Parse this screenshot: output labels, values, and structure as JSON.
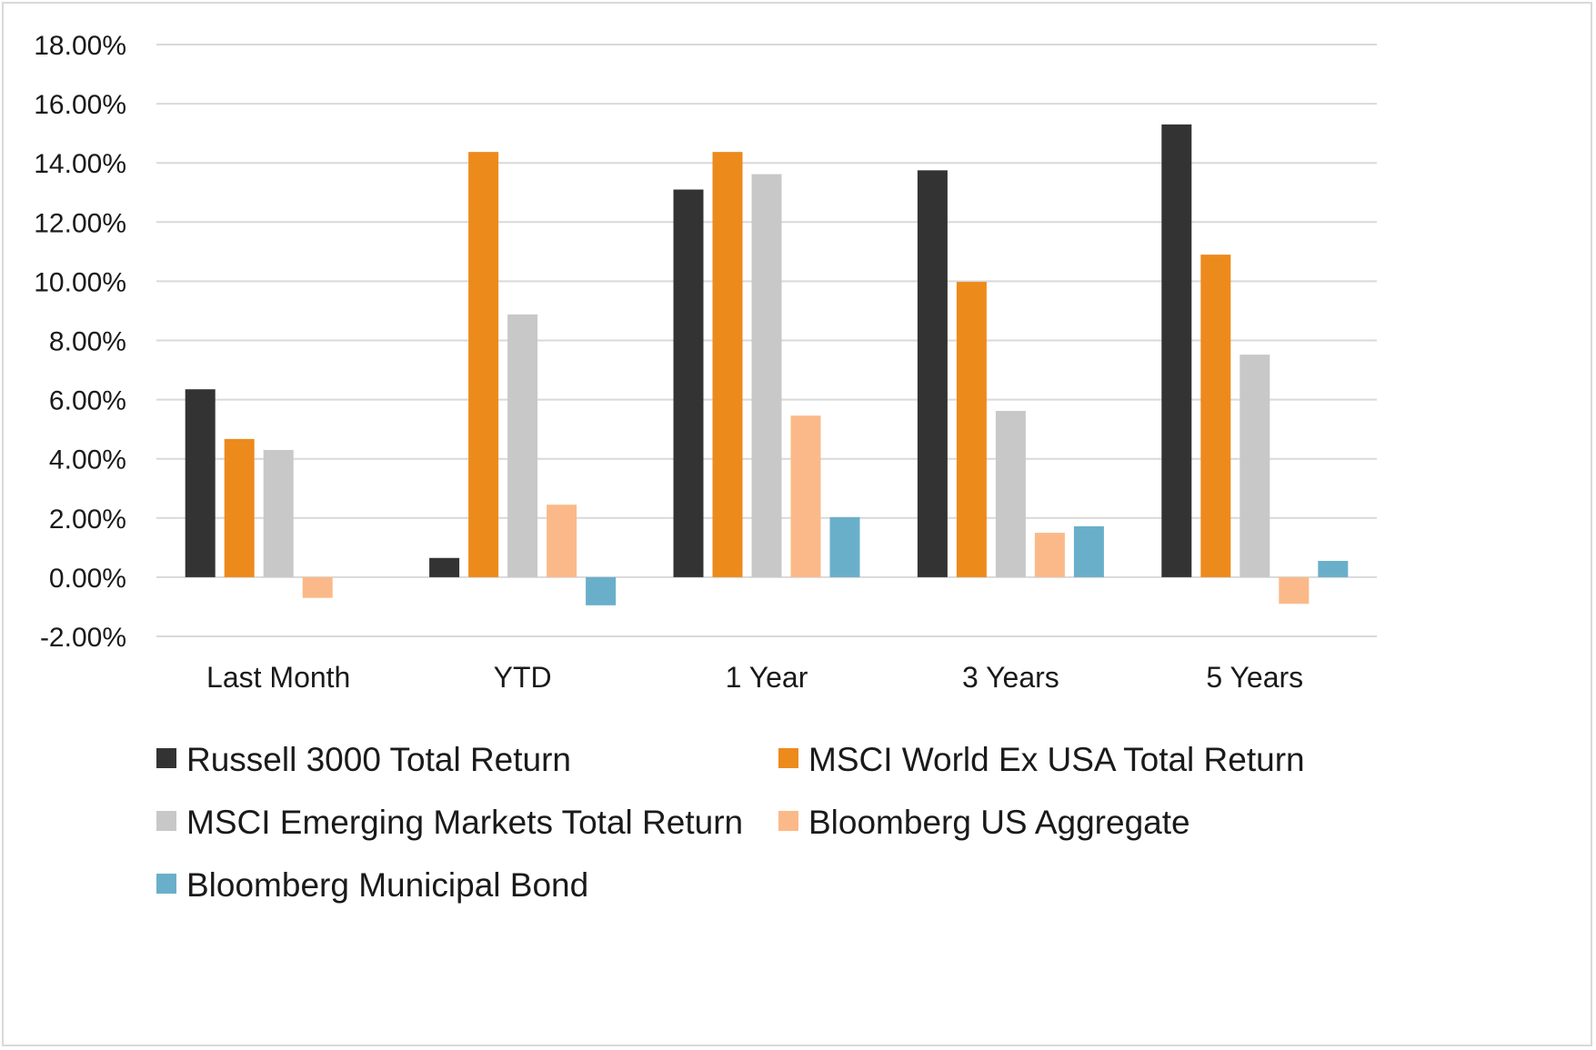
{
  "chart_data": {
    "type": "bar",
    "title": "",
    "xlabel": "",
    "ylabel": "",
    "categories": [
      "Last Month",
      "YTD",
      "1 Year",
      "3 Years",
      "5 Years"
    ],
    "ylim": [
      -0.02,
      0.18
    ],
    "yticks": [
      -0.02,
      0.0,
      0.02,
      0.04,
      0.06,
      0.08,
      0.1,
      0.12,
      0.14,
      0.16,
      0.18
    ],
    "ytick_labels": [
      "-2.00%",
      "0.00%",
      "2.00%",
      "4.00%",
      "6.00%",
      "8.00%",
      "10.00%",
      "12.00%",
      "14.00%",
      "16.00%",
      "18.00%"
    ],
    "grid": true,
    "legend_position": "bottom",
    "series": [
      {
        "name": "Russell 3000 Total Return",
        "color": "#333333",
        "values": [
          0.0635,
          0.0065,
          0.131,
          0.1375,
          0.153
        ]
      },
      {
        "name": "MSCI World Ex USA Total Return",
        "color": "#ed8a1c",
        "values": [
          0.0467,
          0.1437,
          0.1437,
          0.0998,
          0.109
        ]
      },
      {
        "name": "MSCI Emerging Markets Total Return",
        "color": "#c8c8c8",
        "values": [
          0.043,
          0.0888,
          0.1362,
          0.0562,
          0.0752
        ]
      },
      {
        "name": "Bloomberg US Aggregate",
        "color": "#fbb989",
        "values": [
          -0.007,
          0.0245,
          0.0546,
          0.015,
          -0.009
        ]
      },
      {
        "name": "Bloomberg Municipal Bond",
        "color": "#6aafca",
        "values": [
          0.0,
          -0.0095,
          0.0203,
          0.0172,
          0.0055
        ]
      }
    ]
  }
}
